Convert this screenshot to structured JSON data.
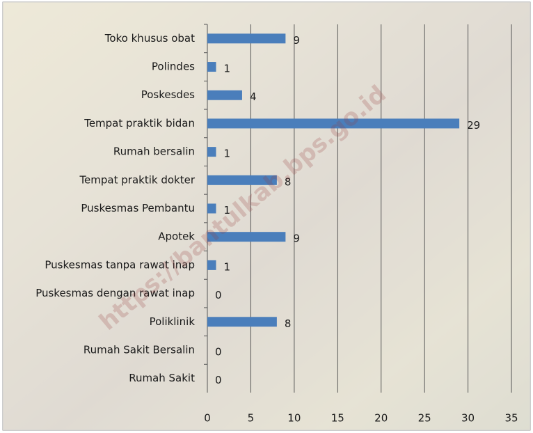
{
  "chart_data": {
    "type": "bar",
    "orientation": "horizontal",
    "categories": [
      "Toko khusus obat",
      "Polindes",
      "Poskesdes",
      "Tempat praktik bidan",
      "Rumah bersalin",
      "Tempat praktik dokter",
      "Puskesmas Pembantu",
      "Apotek",
      "Puskesmas tanpa rawat inap",
      "Puskesmas dengan rawat inap",
      "Poliklinik",
      "Rumah Sakit Bersalin",
      "Rumah Sakit"
    ],
    "values": [
      9,
      1,
      4,
      29,
      1,
      8,
      1,
      9,
      1,
      0,
      8,
      0,
      0
    ],
    "color": "#4a7ebb",
    "xlim": [
      0,
      35
    ],
    "xticks": [
      0,
      5,
      10,
      15,
      20,
      25,
      30,
      35
    ],
    "grid": true,
    "watermark": "https://bantulkab.bps.go.id"
  }
}
